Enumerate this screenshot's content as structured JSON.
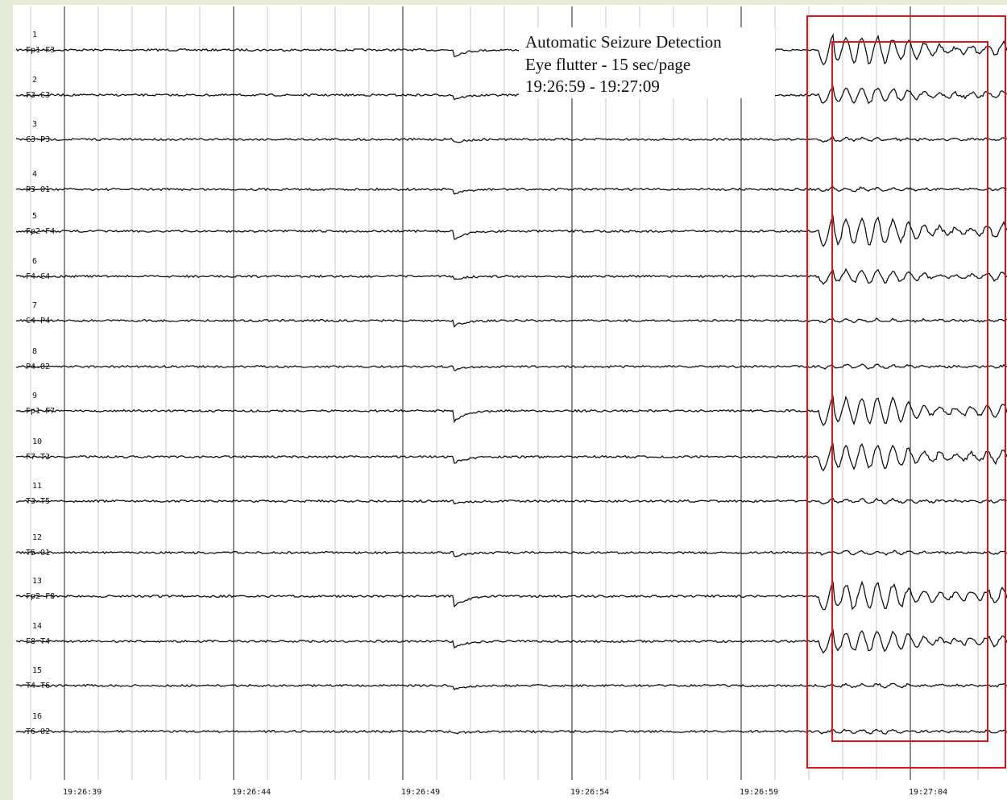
{
  "annotation": [
    "Automatic Seizure Detection",
    "Eye flutter - 15 sec/page",
    "19:26:59 - 19:27:09"
  ],
  "channels": [
    {
      "number": "1",
      "label": "Fp1-F3"
    },
    {
      "number": "2",
      "label": "F3-C3"
    },
    {
      "number": "3",
      "label": "C3-P3"
    },
    {
      "number": "4",
      "label": "P3-O1"
    },
    {
      "number": "5",
      "label": "Fp2-F4"
    },
    {
      "number": "6",
      "label": "F4-C4"
    },
    {
      "number": "7",
      "label": "C4-P4"
    },
    {
      "number": "8",
      "label": "P4-O2"
    },
    {
      "number": "9",
      "label": "Fp1-F7"
    },
    {
      "number": "10",
      "label": "F7-T3"
    },
    {
      "number": "11",
      "label": "T3-T5"
    },
    {
      "number": "12",
      "label": "T5-O1"
    },
    {
      "number": "13",
      "label": "Fp2-F8"
    },
    {
      "number": "14",
      "label": "F8-T4"
    },
    {
      "number": "15",
      "label": "T4-T6"
    },
    {
      "number": "16",
      "label": "T6-O2"
    }
  ],
  "time_labels": [
    "19:26:39",
    "19:26:44",
    "19:26:49",
    "19:26:54",
    "19:26:59",
    "19:27:04"
  ]
}
